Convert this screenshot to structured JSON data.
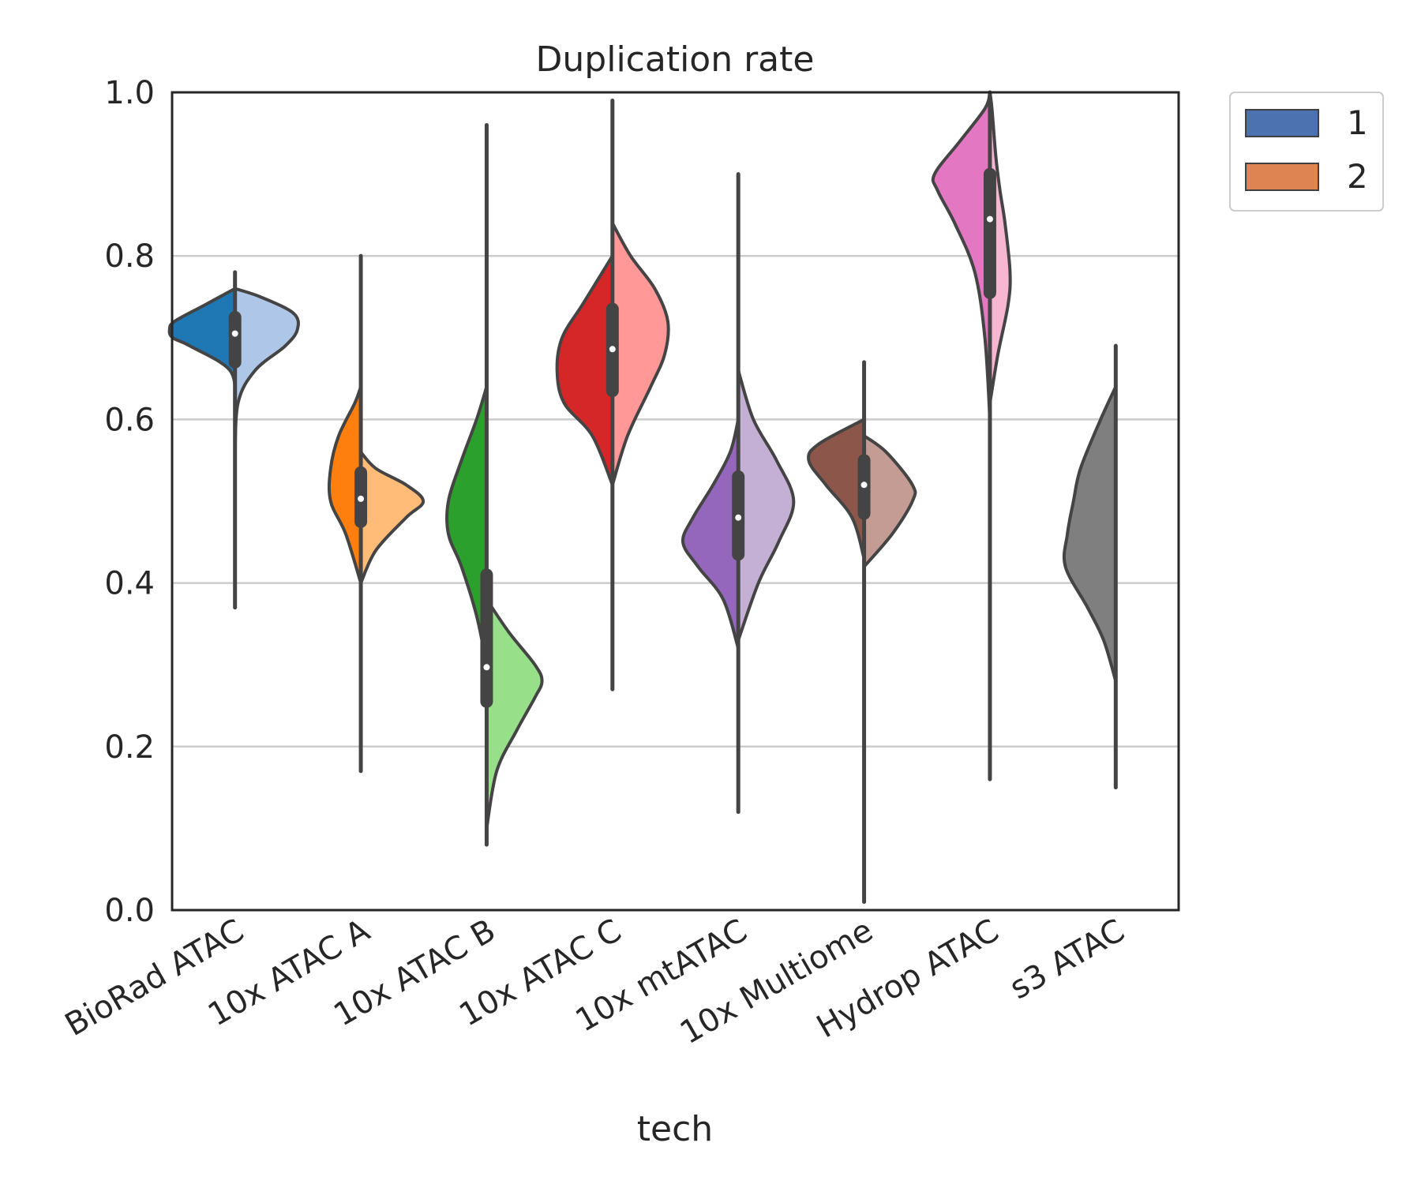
{
  "chart_data": {
    "type": "violin",
    "split": true,
    "title": "Duplication rate",
    "xlabel": "tech",
    "ylabel": "",
    "ylim": [
      0.0,
      1.0
    ],
    "yticks": [
      "0.0",
      "0.2",
      "0.4",
      "0.6",
      "0.8",
      "1.0"
    ],
    "grid": "horizontal",
    "legend": {
      "position": "outside-top-right",
      "entries": [
        {
          "label": "1",
          "color": "#4c72b0"
        },
        {
          "label": "2",
          "color": "#dd8452"
        }
      ]
    },
    "categories": [
      {
        "name": "BioRad ATAC",
        "color_left": "#1f77b4",
        "color_right": "#aec7e8",
        "min": 0.37,
        "max": 0.78,
        "q1": 0.67,
        "median": 0.705,
        "q3": 0.725,
        "left": [
          [
            0.62,
            0.0
          ],
          [
            0.66,
            0.05
          ],
          [
            0.69,
            0.45
          ],
          [
            0.7,
            0.62
          ],
          [
            0.71,
            0.65
          ],
          [
            0.72,
            0.6
          ],
          [
            0.74,
            0.3
          ],
          [
            0.76,
            0.0
          ]
        ],
        "right": [
          [
            0.55,
            0.0
          ],
          [
            0.62,
            0.03
          ],
          [
            0.66,
            0.2
          ],
          [
            0.69,
            0.5
          ],
          [
            0.71,
            0.62
          ],
          [
            0.73,
            0.58
          ],
          [
            0.75,
            0.25
          ],
          [
            0.76,
            0.0
          ]
        ]
      },
      {
        "name": "10x ATAC A",
        "color_left": "#ff7f0e",
        "color_right": "#ffbb78",
        "min": 0.17,
        "max": 0.8,
        "q1": 0.475,
        "median": 0.503,
        "q3": 0.535,
        "left": [
          [
            0.4,
            0.0
          ],
          [
            0.46,
            0.15
          ],
          [
            0.5,
            0.3
          ],
          [
            0.54,
            0.3
          ],
          [
            0.58,
            0.22
          ],
          [
            0.62,
            0.06
          ],
          [
            0.64,
            0.0
          ]
        ],
        "right": [
          [
            0.4,
            0.0
          ],
          [
            0.44,
            0.15
          ],
          [
            0.48,
            0.45
          ],
          [
            0.5,
            0.62
          ],
          [
            0.52,
            0.45
          ],
          [
            0.54,
            0.15
          ],
          [
            0.56,
            0.0
          ]
        ]
      },
      {
        "name": "10x ATAC B",
        "color_left": "#2ca02c",
        "color_right": "#98df8a",
        "min": 0.08,
        "max": 0.96,
        "q1": 0.255,
        "median": 0.297,
        "q3": 0.41,
        "left": [
          [
            0.3,
            0.0
          ],
          [
            0.36,
            0.1
          ],
          [
            0.42,
            0.25
          ],
          [
            0.46,
            0.38
          ],
          [
            0.5,
            0.38
          ],
          [
            0.55,
            0.25
          ],
          [
            0.6,
            0.1
          ],
          [
            0.64,
            0.0
          ]
        ],
        "right": [
          [
            0.1,
            0.0
          ],
          [
            0.17,
            0.1
          ],
          [
            0.22,
            0.3
          ],
          [
            0.26,
            0.48
          ],
          [
            0.28,
            0.55
          ],
          [
            0.3,
            0.48
          ],
          [
            0.34,
            0.22
          ],
          [
            0.38,
            0.0
          ]
        ]
      },
      {
        "name": "10x ATAC C",
        "color_left": "#d62728",
        "color_right": "#ff9896",
        "min": 0.27,
        "max": 0.99,
        "q1": 0.635,
        "median": 0.686,
        "q3": 0.735,
        "left": [
          [
            0.52,
            0.0
          ],
          [
            0.58,
            0.2
          ],
          [
            0.62,
            0.48
          ],
          [
            0.66,
            0.55
          ],
          [
            0.7,
            0.5
          ],
          [
            0.74,
            0.3
          ],
          [
            0.78,
            0.1
          ],
          [
            0.8,
            0.0
          ]
        ],
        "right": [
          [
            0.52,
            0.0
          ],
          [
            0.58,
            0.15
          ],
          [
            0.64,
            0.38
          ],
          [
            0.68,
            0.52
          ],
          [
            0.72,
            0.55
          ],
          [
            0.76,
            0.42
          ],
          [
            0.8,
            0.18
          ],
          [
            0.84,
            0.0
          ]
        ]
      },
      {
        "name": "10x mtATAC",
        "color_left": "#9467bd",
        "color_right": "#c5b0d5",
        "min": 0.12,
        "max": 0.9,
        "q1": 0.435,
        "median": 0.48,
        "q3": 0.53,
        "left": [
          [
            0.32,
            0.0
          ],
          [
            0.38,
            0.15
          ],
          [
            0.42,
            0.4
          ],
          [
            0.45,
            0.55
          ],
          [
            0.48,
            0.45
          ],
          [
            0.52,
            0.25
          ],
          [
            0.56,
            0.08
          ],
          [
            0.6,
            0.0
          ]
        ],
        "right": [
          [
            0.33,
            0.0
          ],
          [
            0.4,
            0.2
          ],
          [
            0.45,
            0.4
          ],
          [
            0.5,
            0.55
          ],
          [
            0.55,
            0.38
          ],
          [
            0.6,
            0.15
          ],
          [
            0.66,
            0.0
          ]
        ]
      },
      {
        "name": "10x Multiome",
        "color_left": "#8c564b",
        "color_right": "#c49c94",
        "min": 0.01,
        "max": 0.67,
        "q1": 0.485,
        "median": 0.52,
        "q3": 0.55,
        "left": [
          [
            0.43,
            0.0
          ],
          [
            0.48,
            0.12
          ],
          [
            0.52,
            0.38
          ],
          [
            0.55,
            0.55
          ],
          [
            0.57,
            0.45
          ],
          [
            0.6,
            0.0
          ]
        ],
        "right": [
          [
            0.42,
            0.0
          ],
          [
            0.46,
            0.28
          ],
          [
            0.5,
            0.48
          ],
          [
            0.52,
            0.48
          ],
          [
            0.56,
            0.22
          ],
          [
            0.58,
            0.0
          ]
        ]
      },
      {
        "name": "Hydrop ATAC",
        "color_left": "#e377c2",
        "color_right": "#f7b6d2",
        "min": 0.16,
        "max": 1.0,
        "q1": 0.755,
        "median": 0.845,
        "q3": 0.9,
        "left": [
          [
            0.6,
            0.0
          ],
          [
            0.7,
            0.05
          ],
          [
            0.78,
            0.15
          ],
          [
            0.84,
            0.35
          ],
          [
            0.88,
            0.52
          ],
          [
            0.9,
            0.55
          ],
          [
            0.94,
            0.3
          ],
          [
            0.98,
            0.05
          ],
          [
            1.0,
            0.0
          ]
        ],
        "right": [
          [
            0.62,
            0.0
          ],
          [
            0.68,
            0.08
          ],
          [
            0.74,
            0.18
          ],
          [
            0.78,
            0.2
          ],
          [
            0.84,
            0.15
          ],
          [
            0.88,
            0.1
          ],
          [
            0.92,
            0.06
          ],
          [
            0.98,
            0.02
          ],
          [
            1.0,
            0.0
          ]
        ]
      },
      {
        "name": "s3 ATAC",
        "color_left": "#7f7f7f",
        "color_right": "",
        "min": 0.15,
        "max": 0.69,
        "q1": null,
        "median": null,
        "q3": null,
        "left": [
          [
            0.28,
            0.0
          ],
          [
            0.33,
            0.12
          ],
          [
            0.37,
            0.28
          ],
          [
            0.42,
            0.5
          ],
          [
            0.46,
            0.48
          ],
          [
            0.5,
            0.42
          ],
          [
            0.54,
            0.35
          ],
          [
            0.6,
            0.15
          ],
          [
            0.64,
            0.0
          ]
        ],
        "right": []
      }
    ]
  }
}
